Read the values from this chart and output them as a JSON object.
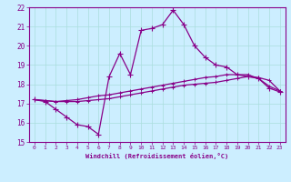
{
  "title": "",
  "xlabel": "Windchill (Refroidissement éolien,°C)",
  "ylabel": "",
  "bg_color": "#cceeff",
  "line_color": "#880088",
  "grid_color": "#aadddd",
  "xlim": [
    -0.5,
    23.5
  ],
  "ylim": [
    15,
    22
  ],
  "yticks": [
    15,
    16,
    17,
    18,
    19,
    20,
    21,
    22
  ],
  "xticks": [
    0,
    1,
    2,
    3,
    4,
    5,
    6,
    7,
    8,
    9,
    10,
    11,
    12,
    13,
    14,
    15,
    16,
    17,
    18,
    19,
    20,
    21,
    22,
    23
  ],
  "line1_x": [
    0,
    1,
    2,
    3,
    4,
    5,
    6,
    7,
    8,
    9,
    10,
    11,
    12,
    13,
    14,
    15,
    16,
    17,
    18,
    19,
    20,
    21,
    22,
    23
  ],
  "line1_y": [
    17.2,
    17.1,
    16.7,
    16.3,
    15.9,
    15.8,
    15.4,
    18.4,
    19.6,
    18.5,
    20.8,
    20.9,
    21.1,
    21.85,
    21.1,
    20.0,
    19.4,
    19.0,
    18.9,
    18.5,
    18.4,
    18.3,
    17.8,
    17.6
  ],
  "line2_x": [
    0,
    1,
    2,
    3,
    4,
    5,
    6,
    7,
    8,
    9,
    10,
    11,
    12,
    13,
    14,
    15,
    16,
    17,
    18,
    19,
    20,
    21,
    22,
    23
  ],
  "line2_y": [
    17.2,
    17.15,
    17.1,
    17.1,
    17.1,
    17.15,
    17.2,
    17.25,
    17.35,
    17.45,
    17.55,
    17.65,
    17.75,
    17.85,
    17.95,
    18.0,
    18.05,
    18.1,
    18.2,
    18.3,
    18.4,
    18.35,
    18.2,
    17.65
  ],
  "line3_x": [
    0,
    1,
    2,
    3,
    4,
    5,
    6,
    7,
    8,
    9,
    10,
    11,
    12,
    13,
    14,
    15,
    16,
    17,
    18,
    19,
    20,
    21,
    22,
    23
  ],
  "line3_y": [
    17.2,
    17.15,
    17.1,
    17.15,
    17.2,
    17.3,
    17.4,
    17.45,
    17.55,
    17.65,
    17.75,
    17.85,
    17.95,
    18.05,
    18.15,
    18.25,
    18.35,
    18.4,
    18.5,
    18.5,
    18.5,
    18.3,
    17.9,
    17.65
  ]
}
